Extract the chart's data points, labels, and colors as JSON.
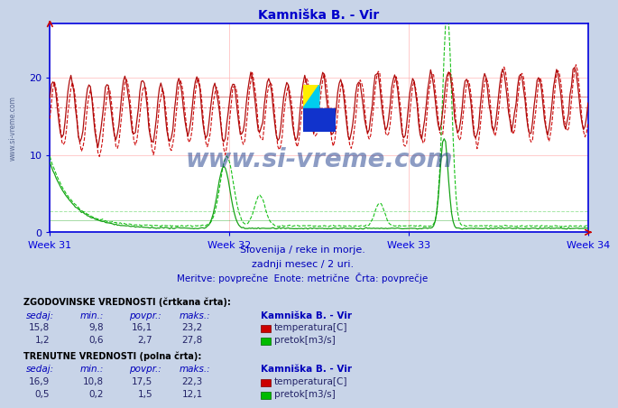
{
  "title": "Kamniška B. - Vir",
  "title_color": "#0000cc",
  "bg_color": "#c8d4e8",
  "plot_bg_color": "#ffffff",
  "grid_color": "#ffb0b0",
  "axis_color": "#0000dd",
  "subtitle1": "Slovenija / reke in morje.",
  "subtitle2": "zadnji mesec / 2 uri.",
  "subtitle3": "Meritve: povprečne  Enote: metrične  Črta: povprečje",
  "week_labels": [
    "Week 31",
    "Week 32",
    "Week 33",
    "Week 34"
  ],
  "yticks": [
    0,
    10,
    20
  ],
  "ymax": 27,
  "ymin": 0,
  "n_points": 360,
  "temp_hist_avg": 16.1,
  "temp_curr_avg": 17.5,
  "flow_hist_avg": 2.7,
  "flow_curr_avg": 1.5,
  "temp_hist_min": 9.8,
  "temp_hist_max": 23.2,
  "temp_curr_min": 10.8,
  "temp_curr_max": 22.3,
  "flow_hist_min": 0.6,
  "flow_hist_max": 27.8,
  "flow_curr_min": 0.2,
  "flow_curr_max": 12.1,
  "temp_hist_now": 15.8,
  "temp_curr_now": 16.9,
  "flow_hist_now": 1.2,
  "flow_curr_now": 0.5,
  "temp_color_hist": "#cc0000",
  "temp_color_curr": "#aa0000",
  "flow_color_hist": "#00bb00",
  "flow_color_curr": "#009900",
  "watermark": "www.si-vreme.com",
  "watermark_color": "#1a3a8a",
  "section_label_color": "#000000",
  "table_header_color": "#0000bb",
  "table_value_color": "#222266",
  "side_watermark_color": "#334477"
}
